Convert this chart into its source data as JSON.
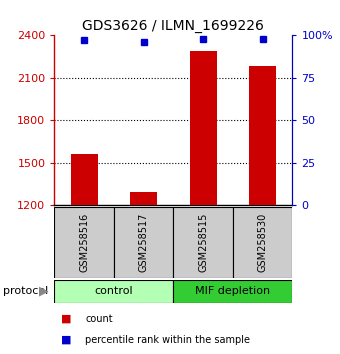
{
  "title": "GDS3626 / ILMN_1699226",
  "samples": [
    "GSM258516",
    "GSM258517",
    "GSM258515",
    "GSM258530"
  ],
  "counts": [
    1560,
    1295,
    2290,
    2185
  ],
  "percentile_ranks": [
    97,
    96,
    98,
    98
  ],
  "ylim_left": [
    1200,
    2400
  ],
  "ylim_right": [
    0,
    100
  ],
  "yticks_left": [
    1200,
    1500,
    1800,
    2100,
    2400
  ],
  "yticks_right": [
    0,
    25,
    50,
    75,
    100
  ],
  "ytick_labels_right": [
    "0",
    "25",
    "50",
    "75",
    "100%"
  ],
  "bar_color": "#cc0000",
  "dot_color": "#0000cc",
  "bar_bottom": 1200,
  "groups": [
    {
      "label": "control",
      "indices": [
        0,
        1
      ],
      "color": "#b3ffb3"
    },
    {
      "label": "MIF depletion",
      "indices": [
        2,
        3
      ],
      "color": "#33cc33"
    }
  ],
  "sample_box_color": "#cccccc",
  "background_color": "#ffffff",
  "legend_items": [
    {
      "label": "count",
      "color": "#cc0000"
    },
    {
      "label": "percentile rank within the sample",
      "color": "#0000cc"
    }
  ],
  "protocol_label": "protocol",
  "figsize": [
    3.4,
    3.54
  ],
  "dpi": 100
}
